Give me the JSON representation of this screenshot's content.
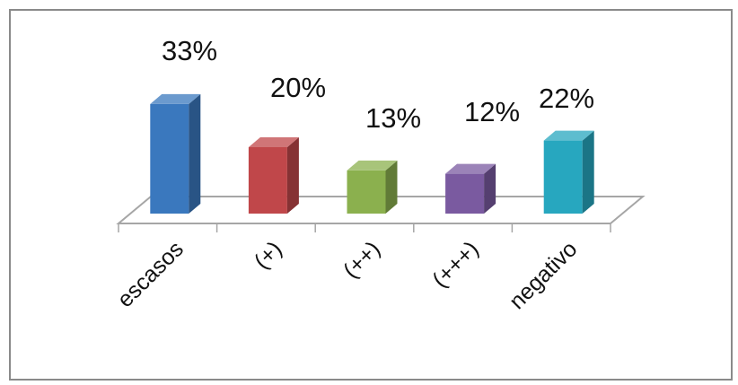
{
  "chart_data": {
    "type": "bar",
    "style": "3d-column",
    "categories": [
      "escasos",
      "(+)",
      "(++)",
      "(+++)",
      "negativo"
    ],
    "values": [
      33,
      20,
      13,
      12,
      22
    ],
    "value_labels": [
      "33%",
      "20%",
      "13%",
      "12%",
      "22%"
    ],
    "unit": "%",
    "colors": [
      "#3a78be",
      "#c0474a",
      "#8bb04e",
      "#7a5aa0",
      "#27a7bf"
    ],
    "title": "",
    "xlabel": "",
    "ylabel": "",
    "legend": "none",
    "grid": false
  }
}
